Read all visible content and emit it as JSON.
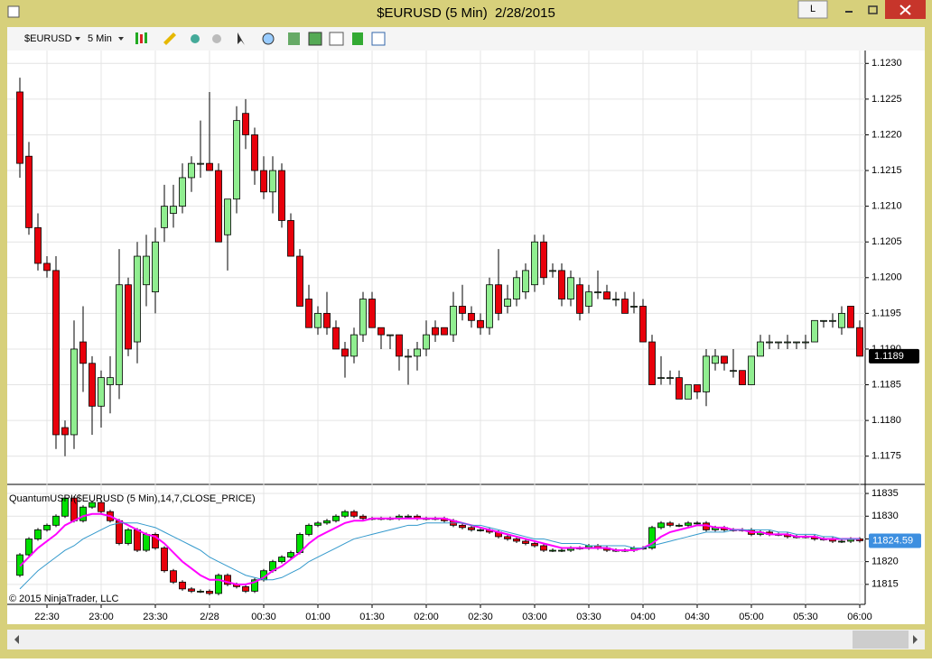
{
  "window": {
    "title": "$EURUSD (5 Min)  2/28/2015",
    "button": "L"
  },
  "toolbar": {
    "instrument": "$EURUSD",
    "interval": "5 Min"
  },
  "chart_data": [
    {
      "type": "candlestick",
      "categories": [
        null,
        null,
        null,
        "22:30",
        null,
        null,
        null,
        null,
        null,
        "23:00",
        null,
        null,
        null,
        null,
        null,
        "23:30",
        null,
        null,
        null,
        null,
        null,
        "2/28",
        null,
        null,
        null,
        null,
        null,
        "00:30",
        null,
        null,
        null,
        null,
        null,
        "01:00",
        null,
        null,
        null,
        null,
        null,
        "01:30",
        null,
        null,
        null,
        null,
        null,
        "02:00",
        null,
        null,
        null,
        null,
        null,
        "02:30",
        null,
        null,
        null,
        null,
        null,
        "03:00",
        null,
        null,
        null,
        null,
        null,
        "03:30",
        null,
        null,
        null,
        null,
        null,
        "04:00",
        null,
        null,
        null,
        null,
        null,
        "04:30",
        null,
        null,
        null,
        null,
        null,
        "05:00",
        null,
        null,
        null,
        null,
        null,
        "05:30",
        null,
        null,
        null,
        null,
        null,
        "06:00"
      ],
      "open": [
        1.1226,
        1.1217,
        1.1207,
        1.1202,
        1.1201,
        1.1179,
        1.1178,
        1.1191,
        1.1188,
        1.1182,
        1.1185,
        1.1185,
        1.1199,
        1.1191,
        1.1199,
        1.1198,
        1.1207,
        1.1209,
        1.121,
        1.1214,
        1.1216,
        1.1216,
        1.1215,
        1.1206,
        1.1211,
        1.1223,
        1.122,
        1.1215,
        1.1212,
        1.1215,
        1.1208,
        1.1203,
        1.1197,
        1.1193,
        1.1195,
        1.1193,
        1.119,
        1.1189,
        1.1192,
        1.1197,
        1.1193,
        1.1192,
        1.1192,
        1.1189,
        1.1189,
        1.119,
        1.1193,
        1.1193,
        1.1192,
        1.1196,
        1.1195,
        1.1194,
        1.1193,
        1.1199,
        1.1196,
        1.1197,
        1.1198,
        1.1199,
        1.1205,
        1.1201,
        1.1201,
        1.1197,
        1.1199,
        1.1196,
        1.1198,
        1.1198,
        1.1197,
        1.1197,
        1.1196,
        1.1196,
        1.1191,
        1.1186,
        1.1186,
        1.1186,
        1.1183,
        1.1185,
        1.1184,
        1.1188,
        1.1189,
        1.1187,
        1.1187,
        1.1185,
        1.1189,
        1.1191,
        1.1191,
        1.1191,
        1.1191,
        1.1191,
        1.1191,
        1.1194,
        1.1194,
        1.1193,
        1.1196,
        1.1193
      ],
      "high": [
        1.1228,
        1.1219,
        1.1209,
        1.1203,
        1.1203,
        1.118,
        1.1194,
        1.1196,
        1.1189,
        1.1187,
        1.1189,
        1.1204,
        1.12,
        1.1205,
        1.1206,
        1.1207,
        1.1213,
        1.1213,
        1.1216,
        1.1217,
        1.1222,
        1.1226,
        1.1216,
        1.1211,
        1.1224,
        1.1225,
        1.1221,
        1.1217,
        1.1217,
        1.1216,
        1.1209,
        1.1204,
        1.1199,
        1.1196,
        1.1198,
        1.1194,
        1.1191,
        1.1193,
        1.1198,
        1.1198,
        1.1193,
        1.1192,
        1.1192,
        1.119,
        1.1191,
        1.1194,
        1.1194,
        1.1193,
        1.1198,
        1.1199,
        1.1196,
        1.1195,
        1.12,
        1.1204,
        1.1199,
        1.1201,
        1.1202,
        1.1206,
        1.1206,
        1.1202,
        1.1202,
        1.1201,
        1.12,
        1.1199,
        1.1201,
        1.1199,
        1.1198,
        1.1198,
        1.1198,
        1.1197,
        1.1192,
        1.1189,
        1.1187,
        1.1187,
        1.1185,
        1.1185,
        1.119,
        1.119,
        1.1189,
        1.119,
        1.1187,
        1.1189,
        1.1192,
        1.1192,
        1.1191,
        1.1192,
        1.1191,
        1.1192,
        1.1194,
        1.1194,
        1.1195,
        1.1196,
        1.1196,
        1.1194
      ],
      "low": [
        1.1214,
        1.1206,
        1.1201,
        1.12,
        1.1176,
        1.1175,
        1.1176,
        1.1184,
        1.1178,
        1.1179,
        1.1181,
        1.1183,
        1.1189,
        1.1188,
        1.1196,
        1.1195,
        1.1205,
        1.1207,
        1.1209,
        1.1212,
        1.1214,
        1.1215,
        1.1205,
        1.1201,
        1.1209,
        1.1218,
        1.1213,
        1.1211,
        1.1209,
        1.1207,
        1.1203,
        1.1196,
        1.1193,
        1.1192,
        1.1192,
        1.119,
        1.1186,
        1.1188,
        1.1191,
        1.1193,
        1.119,
        1.119,
        1.1187,
        1.1185,
        1.1187,
        1.1189,
        1.1191,
        1.1192,
        1.1191,
        1.1194,
        1.1193,
        1.1192,
        1.1192,
        1.1194,
        1.1195,
        1.1196,
        1.1197,
        1.1198,
        1.1199,
        1.12,
        1.1196,
        1.1196,
        1.1194,
        1.1195,
        1.1197,
        1.1197,
        1.1196,
        1.1195,
        1.1195,
        1.1191,
        1.1185,
        1.1185,
        1.1185,
        1.1183,
        1.1183,
        1.1183,
        1.1182,
        1.1187,
        1.1187,
        1.1186,
        1.1185,
        1.1185,
        1.1189,
        1.119,
        1.119,
        1.119,
        1.119,
        1.119,
        1.1191,
        1.1193,
        1.1193,
        1.1192,
        1.1193,
        1.1189
      ],
      "close": [
        1.1216,
        1.1207,
        1.1202,
        1.1201,
        1.1178,
        1.1178,
        1.119,
        1.1188,
        1.1182,
        1.1186,
        1.1186,
        1.1199,
        1.119,
        1.1203,
        1.1203,
        1.1205,
        1.121,
        1.121,
        1.1214,
        1.1216,
        1.1216,
        1.1215,
        1.1205,
        1.1211,
        1.1222,
        1.122,
        1.1215,
        1.1212,
        1.1215,
        1.1208,
        1.1203,
        1.1196,
        1.1193,
        1.1195,
        1.1193,
        1.119,
        1.1189,
        1.1192,
        1.1197,
        1.1193,
        1.1192,
        1.1192,
        1.1189,
        1.1189,
        1.119,
        1.1192,
        1.1192,
        1.1192,
        1.1196,
        1.1195,
        1.1194,
        1.1193,
        1.1199,
        1.1195,
        1.1197,
        1.12,
        1.1201,
        1.1205,
        1.12,
        1.1201,
        1.1197,
        1.12,
        1.1195,
        1.1198,
        1.1198,
        1.1197,
        1.1197,
        1.1195,
        1.1196,
        1.1191,
        1.1185,
        1.1186,
        1.1186,
        1.1183,
        1.1185,
        1.1184,
        1.1189,
        1.1189,
        1.1188,
        1.1187,
        1.1185,
        1.1189,
        1.1191,
        1.1191,
        1.1191,
        1.1191,
        1.1191,
        1.1191,
        1.1194,
        1.1194,
        1.1194,
        1.1195,
        1.1193,
        1.1189
      ],
      "up_color": "#90ee90",
      "down_color": "#e8000b",
      "ylim": [
        1.11713,
        1.12313
      ],
      "yticks": [
        1.1175,
        {
          "value": 1.118,
          "label": "1.1180"
        },
        1.1185,
        {
          "value": 1.119,
          "label": "1.1190"
        },
        1.1195,
        {
          "value": 1.12,
          "label": "1.1200"
        },
        1.1205,
        {
          "value": 1.121,
          "label": "1.1210"
        },
        1.1215,
        {
          "value": 1.122,
          "label": "1.1220"
        },
        1.1225,
        {
          "value": 1.123,
          "label": "1.1230"
        }
      ],
      "grid": true,
      "last_price": 1.1189
    },
    {
      "type": "candlestick",
      "title": "QuantumUSPI($EURUSD (5 Min),14,7,CLOSE_PRICE)",
      "watermark": "© 2015 NinjaTrader, LLC",
      "open": [
        11817,
        11821.5,
        11825,
        11827,
        11828,
        11830,
        11834,
        11829,
        11832,
        11833,
        11831,
        11829,
        11824,
        11827,
        11822.5,
        11826,
        11823,
        11818,
        11815.5,
        11814,
        11813.5,
        11813.5,
        11813,
        11817,
        11815,
        11814.5,
        11813.5,
        11816,
        11818,
        11820,
        11821,
        11822,
        11826,
        11828,
        11828.5,
        11829,
        11830,
        11831,
        11830,
        11829.5,
        11829.5,
        11829.5,
        11829.5,
        11830,
        11830,
        11829.5,
        11829.5,
        11829.5,
        11829,
        11828,
        11827.5,
        11827,
        11827,
        11826.5,
        11825.5,
        11825,
        11824.5,
        11824,
        11823.5,
        11822.5,
        11822.5,
        11822.5,
        11823,
        11823,
        11823.5,
        11823,
        11822.5,
        11822.5,
        11822.5,
        11823,
        11823,
        11827.5,
        11828.5,
        11828,
        11828,
        11828.5,
        11828.5,
        11827,
        11827.5,
        11827,
        11827,
        11827,
        11826,
        11826.5,
        11826,
        11826,
        11825.5,
        11825.5,
        11825.5,
        11825,
        11825,
        11824.5,
        11824.5,
        11825
      ],
      "close": [
        11821.5,
        11825,
        11827,
        11828,
        11830,
        11834,
        11829,
        11832,
        11833,
        11831,
        11829,
        11824,
        11827,
        11822.5,
        11826,
        11823,
        11818,
        11815.5,
        11814,
        11813.5,
        11813.5,
        11813,
        11817,
        11815,
        11814.5,
        11813.5,
        11816,
        11818,
        11820,
        11821,
        11822,
        11826,
        11828,
        11828.5,
        11829,
        11830,
        11831,
        11830,
        11829.5,
        11829.5,
        11829.5,
        11829.5,
        11830,
        11830,
        11829.5,
        11829.5,
        11829.5,
        11829,
        11828,
        11827.5,
        11827,
        11827,
        11826.5,
        11825.5,
        11825,
        11824.5,
        11824,
        11823.5,
        11822.5,
        11822.5,
        11822.5,
        11823,
        11823,
        11823.5,
        11823,
        11822.5,
        11822.5,
        11822.5,
        11823,
        11823,
        11827.5,
        11828.5,
        11828,
        11828,
        11828.5,
        11828.5,
        11827,
        11827.5,
        11827,
        11827,
        11827,
        11826,
        11826.5,
        11826,
        11826,
        11825.5,
        11825.5,
        11825.5,
        11825,
        11825,
        11824.5,
        11824.5,
        11825,
        11824.59
      ],
      "up_color": "#00e000",
      "down_color": "#e8000b",
      "series": [
        {
          "color": "#ff00ff",
          "values": [
            11819,
            11821,
            11823,
            11824.5,
            11826,
            11828,
            11829,
            11830,
            11830.5,
            11830.5,
            11830,
            11829,
            11828,
            11827,
            11826,
            11825.5,
            11824,
            11822,
            11820,
            11818.5,
            11817,
            11816,
            11816,
            11815.5,
            11815,
            11815,
            11815.5,
            11816.5,
            11818,
            11819,
            11820.5,
            11822,
            11824,
            11825.5,
            11826.5,
            11827.5,
            11828.5,
            11829,
            11829,
            11829.5,
            11829.5,
            11829.5,
            11829.5,
            11829.5,
            11829.5,
            11829.5,
            11829.5,
            11829.5,
            11829,
            11828.5,
            11828,
            11827.5,
            11827,
            11826.5,
            11826,
            11825.5,
            11825,
            11824.5,
            11824,
            11823.5,
            11823,
            11823,
            11823,
            11823,
            11823,
            11823,
            11822.5,
            11822.5,
            11822.5,
            11823,
            11824,
            11825.5,
            11826.5,
            11827,
            11827.5,
            11828,
            11828,
            11827.5,
            11827.5,
            11827,
            11827,
            11826.5,
            11826.5,
            11826,
            11826,
            11826,
            11825.5,
            11825.5,
            11825.5,
            11825,
            11825,
            11825,
            11825,
            11825
          ]
        },
        {
          "color": "#3399cc",
          "values": [
            11814,
            11816,
            11818,
            11819.5,
            11821,
            11822.5,
            11823.5,
            11825,
            11826,
            11827,
            11828,
            11828.5,
            11828.5,
            11828.5,
            11828,
            11827.5,
            11826.5,
            11825.5,
            11824.5,
            11823.5,
            11822.5,
            11821,
            11820,
            11819,
            11818,
            11817,
            11816.5,
            11816,
            11816,
            11816.5,
            11817.5,
            11818.5,
            11820,
            11821,
            11822,
            11823,
            11824,
            11825,
            11825.5,
            11826,
            11826.5,
            11827,
            11827.5,
            11828,
            11828,
            11828.5,
            11828.5,
            11828.5,
            11828.5,
            11828.5,
            11828,
            11828,
            11827.5,
            11827,
            11826.5,
            11826,
            11825.5,
            11825,
            11825,
            11824.5,
            11824,
            11824,
            11824,
            11823.5,
            11823.5,
            11823.5,
            11823.5,
            11823.5,
            11823,
            11823,
            11823.5,
            11824,
            11824.5,
            11825,
            11825.5,
            11826,
            11826.5,
            11826.5,
            11826.5,
            11827,
            11827,
            11827,
            11827,
            11827,
            11826.5,
            11826.5,
            11826,
            11826,
            11826,
            11825.5,
            11825.5,
            11825,
            11825,
            11825
          ]
        }
      ],
      "ylim": [
        11810.6,
        11836.4
      ],
      "yticks": [
        11815,
        11820,
        11825,
        11830,
        11835
      ],
      "grid": true,
      "last_value": 11824.59
    }
  ]
}
